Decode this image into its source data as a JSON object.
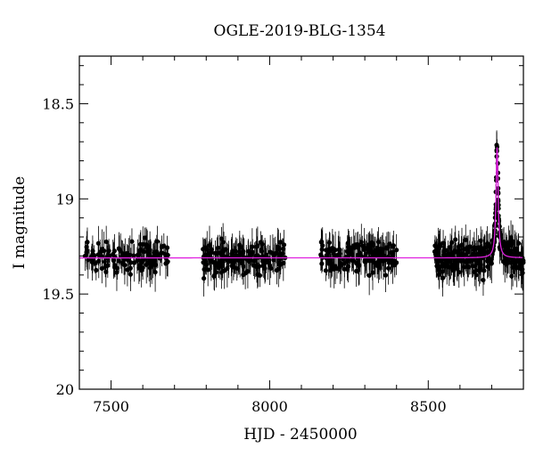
{
  "chart_data": {
    "type": "scatter",
    "title": "OGLE-2019-BLG-1354",
    "xlabel": "HJD - 2450000",
    "ylabel": "I magnitude",
    "xlim": [
      7400,
      8800
    ],
    "ylim": [
      20,
      18.25
    ],
    "y_inverted": true,
    "x_ticks": [
      7500,
      8000,
      8500
    ],
    "y_ticks": [
      18.5,
      19,
      19.5,
      20
    ],
    "x_tick_labels": [
      "7500",
      "8000",
      "8500"
    ],
    "y_tick_labels": [
      "18.5",
      "19",
      "19.5",
      "20"
    ],
    "grid": false,
    "baseline_mag": 19.31,
    "colors": {
      "points": "#000000",
      "model": "#e020e0",
      "axes": "#000000"
    },
    "series": [
      {
        "marker": "filled-circle-with-errorbars",
        "seasons": [
          {
            "x_start": 7415,
            "x_end": 7680,
            "n_points": 130
          },
          {
            "x_start": 7790,
            "x_end": 8050,
            "n_points": 170
          },
          {
            "x_start": 8160,
            "x_end": 8400,
            "n_points": 160
          },
          {
            "x_start": 8520,
            "x_end": 8800,
            "n_points": 260
          }
        ],
        "scatter_mag": 0.07,
        "error_mag": 0.08
      },
      {
        "marker": "line",
        "event": {
          "t0": 8717,
          "peak_mag": 18.73,
          "width_days": 4
        }
      }
    ]
  }
}
